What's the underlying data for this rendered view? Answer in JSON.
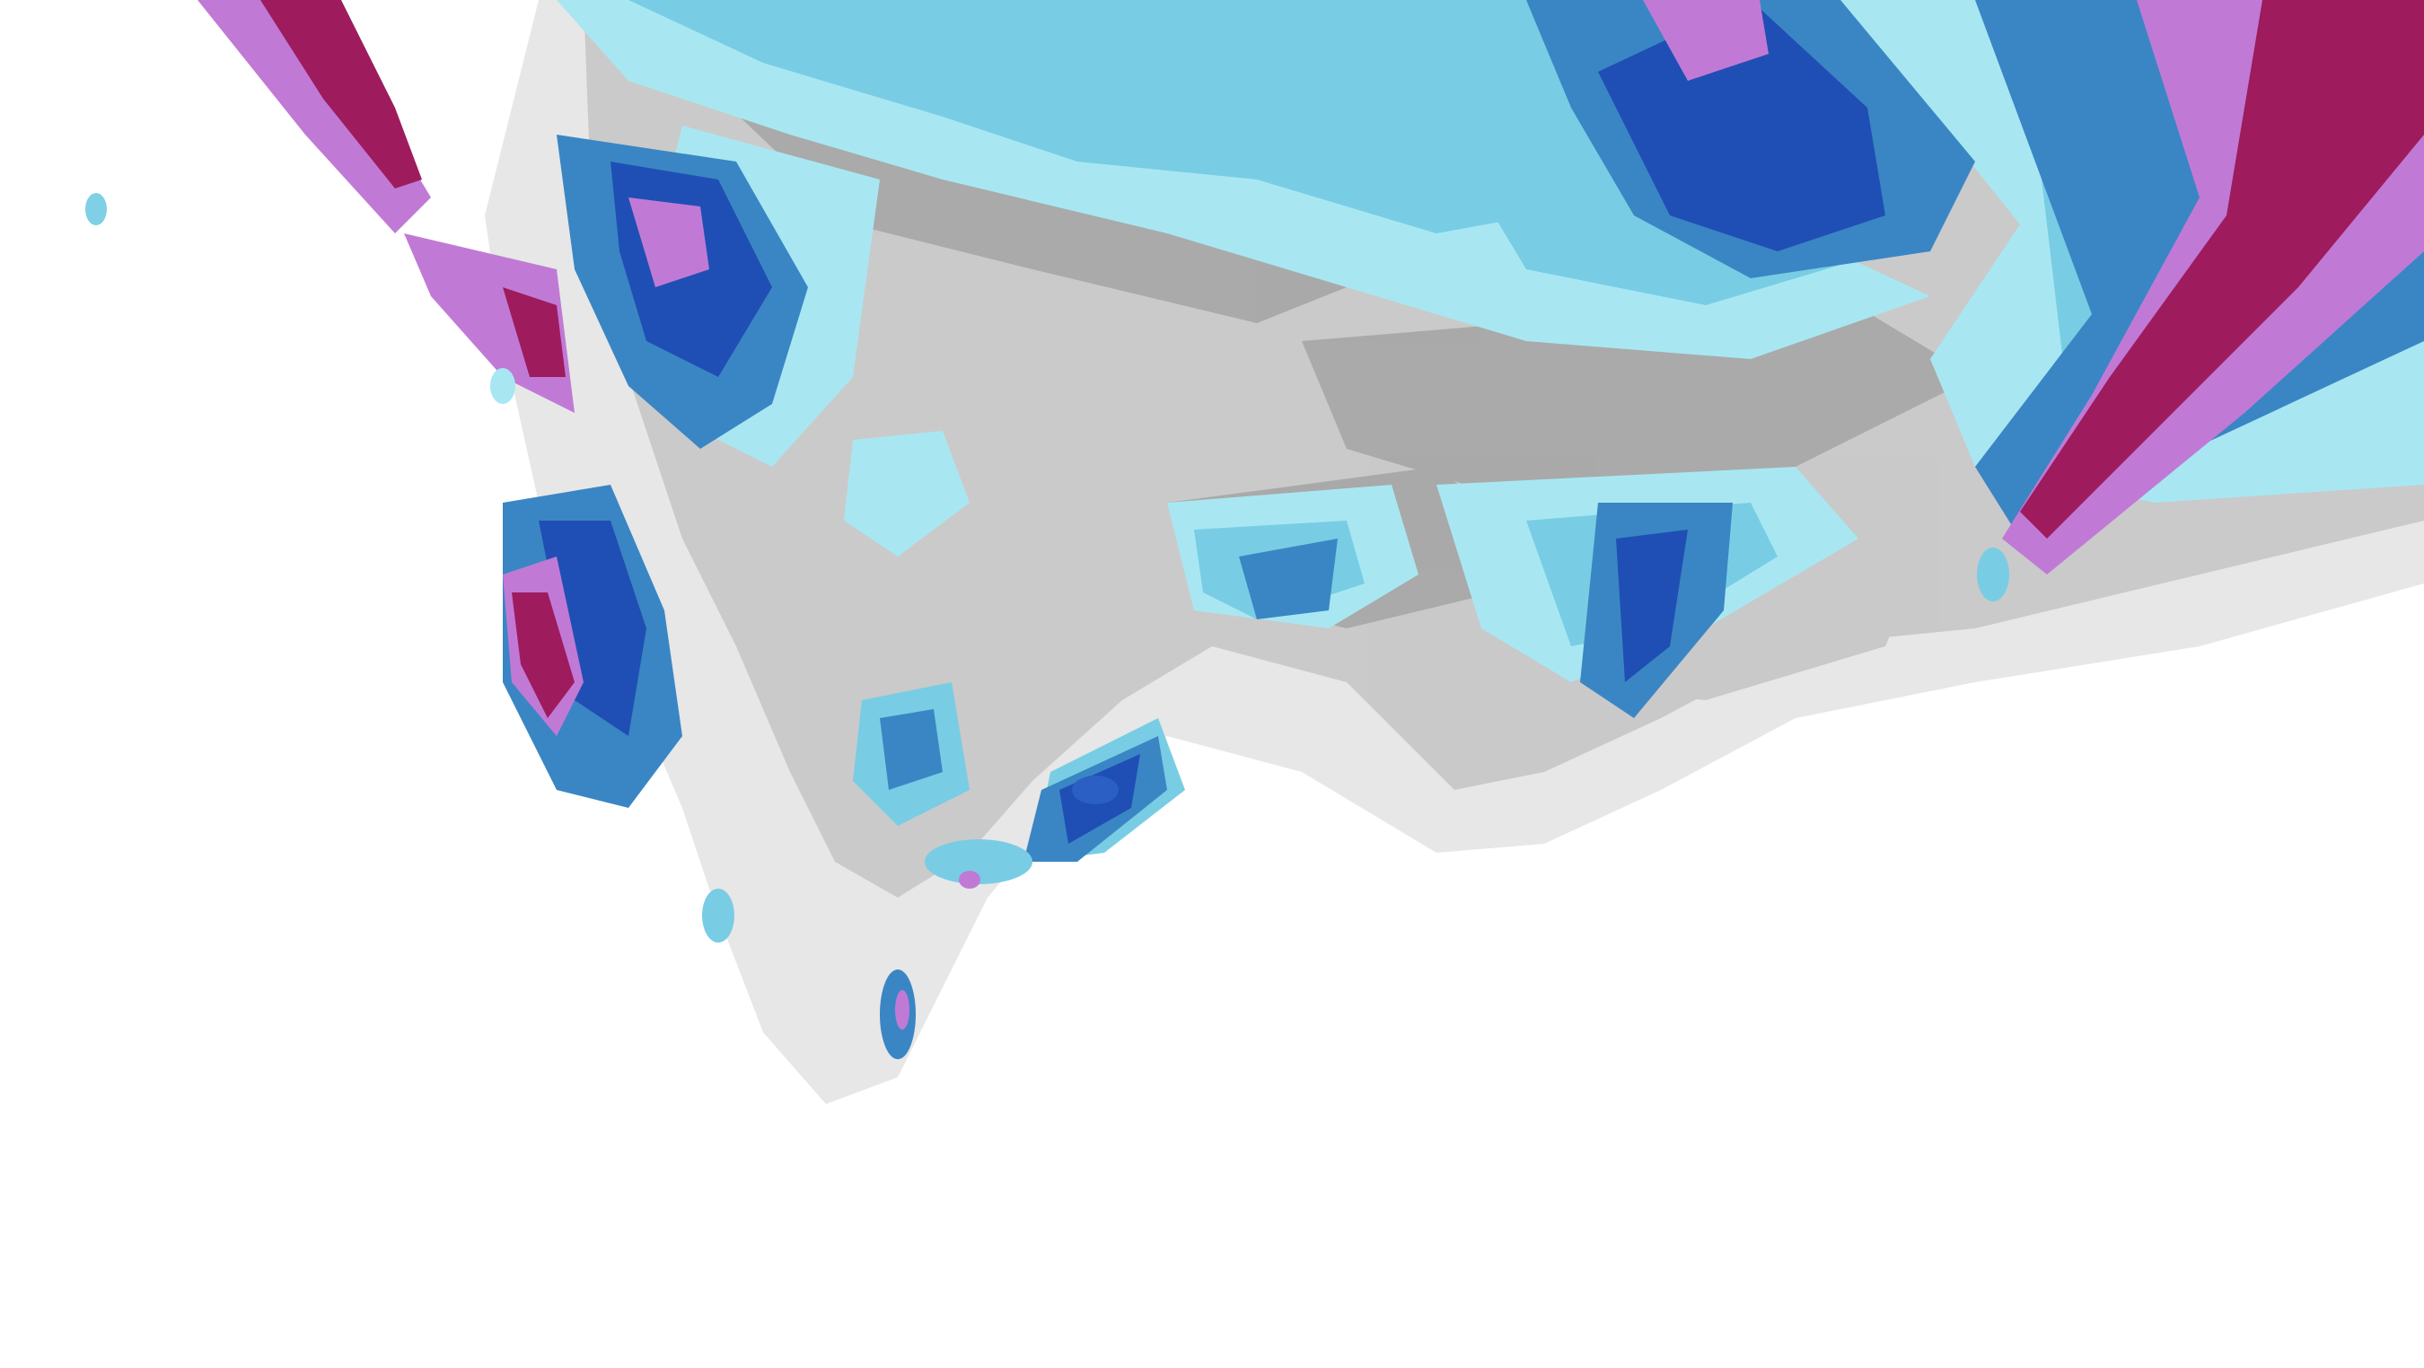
{
  "map": {
    "kind": "precipitation-contour-overlay",
    "background_color": "#ffffff",
    "visible_text": [],
    "color_scale": [
      "#ebebeb",
      "#d4d4d4",
      "#b3b3b3",
      "#999999",
      "#a8e7f2",
      "#7fd0e6",
      "#5fb3d6",
      "#3a86c4",
      "#2b5fc4",
      "#1e3faa",
      "#c98ed9",
      "#b14fc4",
      "#a01f7a",
      "#8e1a4e"
    ]
  }
}
